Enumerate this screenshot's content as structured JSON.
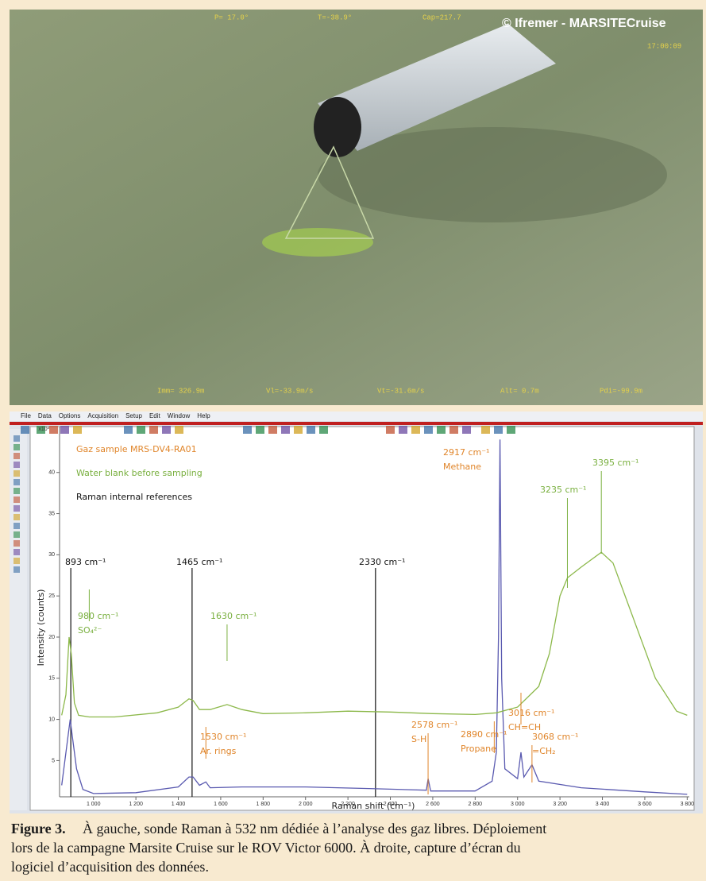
{
  "photo": {
    "overlay": {
      "pitch": "P= 17.0°",
      "temp": "T=-38.9°",
      "cap": "Cap=217.7",
      "copyright": "© Ifremer - MARSITECruise",
      "time": "17:00:09",
      "imm": "Imm= 326.9m",
      "vl": "Vl=-33.9m/s",
      "vt": "Vt=-31.6m/s",
      "alt": "Alt= 0.7m",
      "pdi": "Pdi=-99.9m"
    }
  },
  "software": {
    "menu": [
      "File",
      "Data",
      "Options",
      "Acquisition",
      "Setup",
      "Edit",
      "Window",
      "Help"
    ]
  },
  "chart_data": {
    "type": "line",
    "y_label": "Intensity (counts)",
    "y_multiplier": "x10³",
    "x_label": "Raman shift (cm⁻¹)",
    "xlim": [
      840,
      3810
    ],
    "ylim": [
      0.6,
      44.8
    ],
    "xticks": [
      {
        "value": 1000,
        "label": "1 000"
      },
      {
        "value": 1200,
        "label": "1 200"
      },
      {
        "value": 1400,
        "label": "1 400"
      },
      {
        "value": 1600,
        "label": "1 600"
      },
      {
        "value": 1800,
        "label": "1 800"
      },
      {
        "value": 2000,
        "label": "2 000"
      },
      {
        "value": 2200,
        "label": "2 200"
      },
      {
        "value": 2400,
        "label": "2 400"
      },
      {
        "value": 2600,
        "label": "2 600"
      },
      {
        "value": 2800,
        "label": "2 800"
      },
      {
        "value": 3000,
        "label": "3 000"
      },
      {
        "value": 3200,
        "label": "3 200"
      },
      {
        "value": 3400,
        "label": "3 400"
      },
      {
        "value": 3600,
        "label": "3 600"
      },
      {
        "value": 3800,
        "label": "3 800"
      }
    ],
    "yticks": [
      5,
      10,
      15,
      20,
      25,
      30,
      35,
      40
    ],
    "series": [
      {
        "name": "Gaz sample MRS-DV4-RA01",
        "color": "#5a5ab0",
        "label_color": "#e0852a",
        "x": [
          850,
          880,
          890,
          900,
          920,
          950,
          1000,
          1200,
          1400,
          1450,
          1470,
          1500,
          1530,
          1550,
          1700,
          2000,
          2300,
          2570,
          2578,
          2590,
          2800,
          2880,
          2900,
          2910,
          2917,
          2925,
          2940,
          3000,
          3016,
          3030,
          3068,
          3100,
          3300,
          3600,
          3800
        ],
        "values": [
          2,
          8,
          10,
          8,
          4,
          1.5,
          1,
          1.1,
          1.8,
          3,
          3,
          2,
          2.4,
          1.7,
          1.8,
          1.8,
          1.6,
          1.4,
          2.8,
          1.3,
          1.3,
          2.5,
          6,
          20,
          44,
          15,
          4,
          2.8,
          6,
          3,
          4.5,
          2.5,
          1.7,
          1.2,
          0.9
        ]
      },
      {
        "name": "Water blank before sampling",
        "color": "#8cb84a",
        "label_color": "#7ab040",
        "x": [
          850,
          870,
          885,
          895,
          910,
          930,
          980,
          1100,
          1300,
          1400,
          1450,
          1470,
          1500,
          1550,
          1630,
          1700,
          1800,
          2000,
          2200,
          2400,
          2600,
          2800,
          2900,
          3000,
          3100,
          3150,
          3200,
          3235,
          3300,
          3395,
          3450,
          3550,
          3650,
          3750,
          3800
        ],
        "values": [
          10.5,
          13,
          20,
          18,
          12,
          10.5,
          10.3,
          10.3,
          10.8,
          11.5,
          12.5,
          12.3,
          11.2,
          11.2,
          11.8,
          11.2,
          10.7,
          10.8,
          11,
          10.9,
          10.7,
          10.6,
          10.8,
          11.5,
          14,
          18,
          25,
          27.2,
          28.5,
          30.3,
          29,
          22,
          15,
          11,
          10.5
        ]
      }
    ],
    "references": {
      "name": "Raman internal references",
      "color": "#111111",
      "x": [
        893,
        1465,
        2330
      ]
    },
    "annotations": [
      {
        "text": "893 cm⁻¹",
        "x": 893,
        "color": "#111111"
      },
      {
        "text": "1465 cm⁻¹",
        "x": 1465,
        "color": "#111111"
      },
      {
        "text": "2330 cm⁻¹",
        "x": 2330,
        "color": "#111111"
      },
      {
        "text": "980 cm⁻¹",
        "sublabel": "SO₄²⁻",
        "x": 980,
        "color": "#7ab040"
      },
      {
        "text": "1630 cm⁻¹",
        "x": 1630,
        "color": "#7ab040"
      },
      {
        "text": "3235 cm⁻¹",
        "x": 3235,
        "color": "#7ab040"
      },
      {
        "text": "3395 cm⁻¹",
        "x": 3395,
        "color": "#7ab040"
      },
      {
        "text": "2917 cm⁻¹",
        "sublabel": "Methane",
        "x": 2917,
        "color": "#e0852a"
      },
      {
        "text": "1530 cm⁻¹",
        "sublabel": "Ar. rings",
        "x": 1530,
        "color": "#e0852a"
      },
      {
        "text": "2578 cm⁻¹",
        "sublabel": "S-H",
        "x": 2578,
        "color": "#e0852a"
      },
      {
        "text": "2890 cm⁻¹",
        "sublabel": "Propane",
        "x": 2890,
        "color": "#e0852a"
      },
      {
        "text": "3016 cm⁻¹",
        "sublabel": "CH=CH",
        "x": 3016,
        "color": "#e0852a"
      },
      {
        "text": "3068 cm⁻¹",
        "sublabel": "=CH₂",
        "x": 3068,
        "color": "#e0852a"
      }
    ]
  },
  "caption": {
    "label": "Figure 3.",
    "lines": [
      "À gauche, sonde Raman à 532 nm dédiée à l’analyse des gaz libres. Déploiement",
      "lors de la campagne Marsite Cruise sur le ROV Victor 6000. À droite, capture d’écran du",
      "logiciel d’acquisition des données."
    ]
  }
}
